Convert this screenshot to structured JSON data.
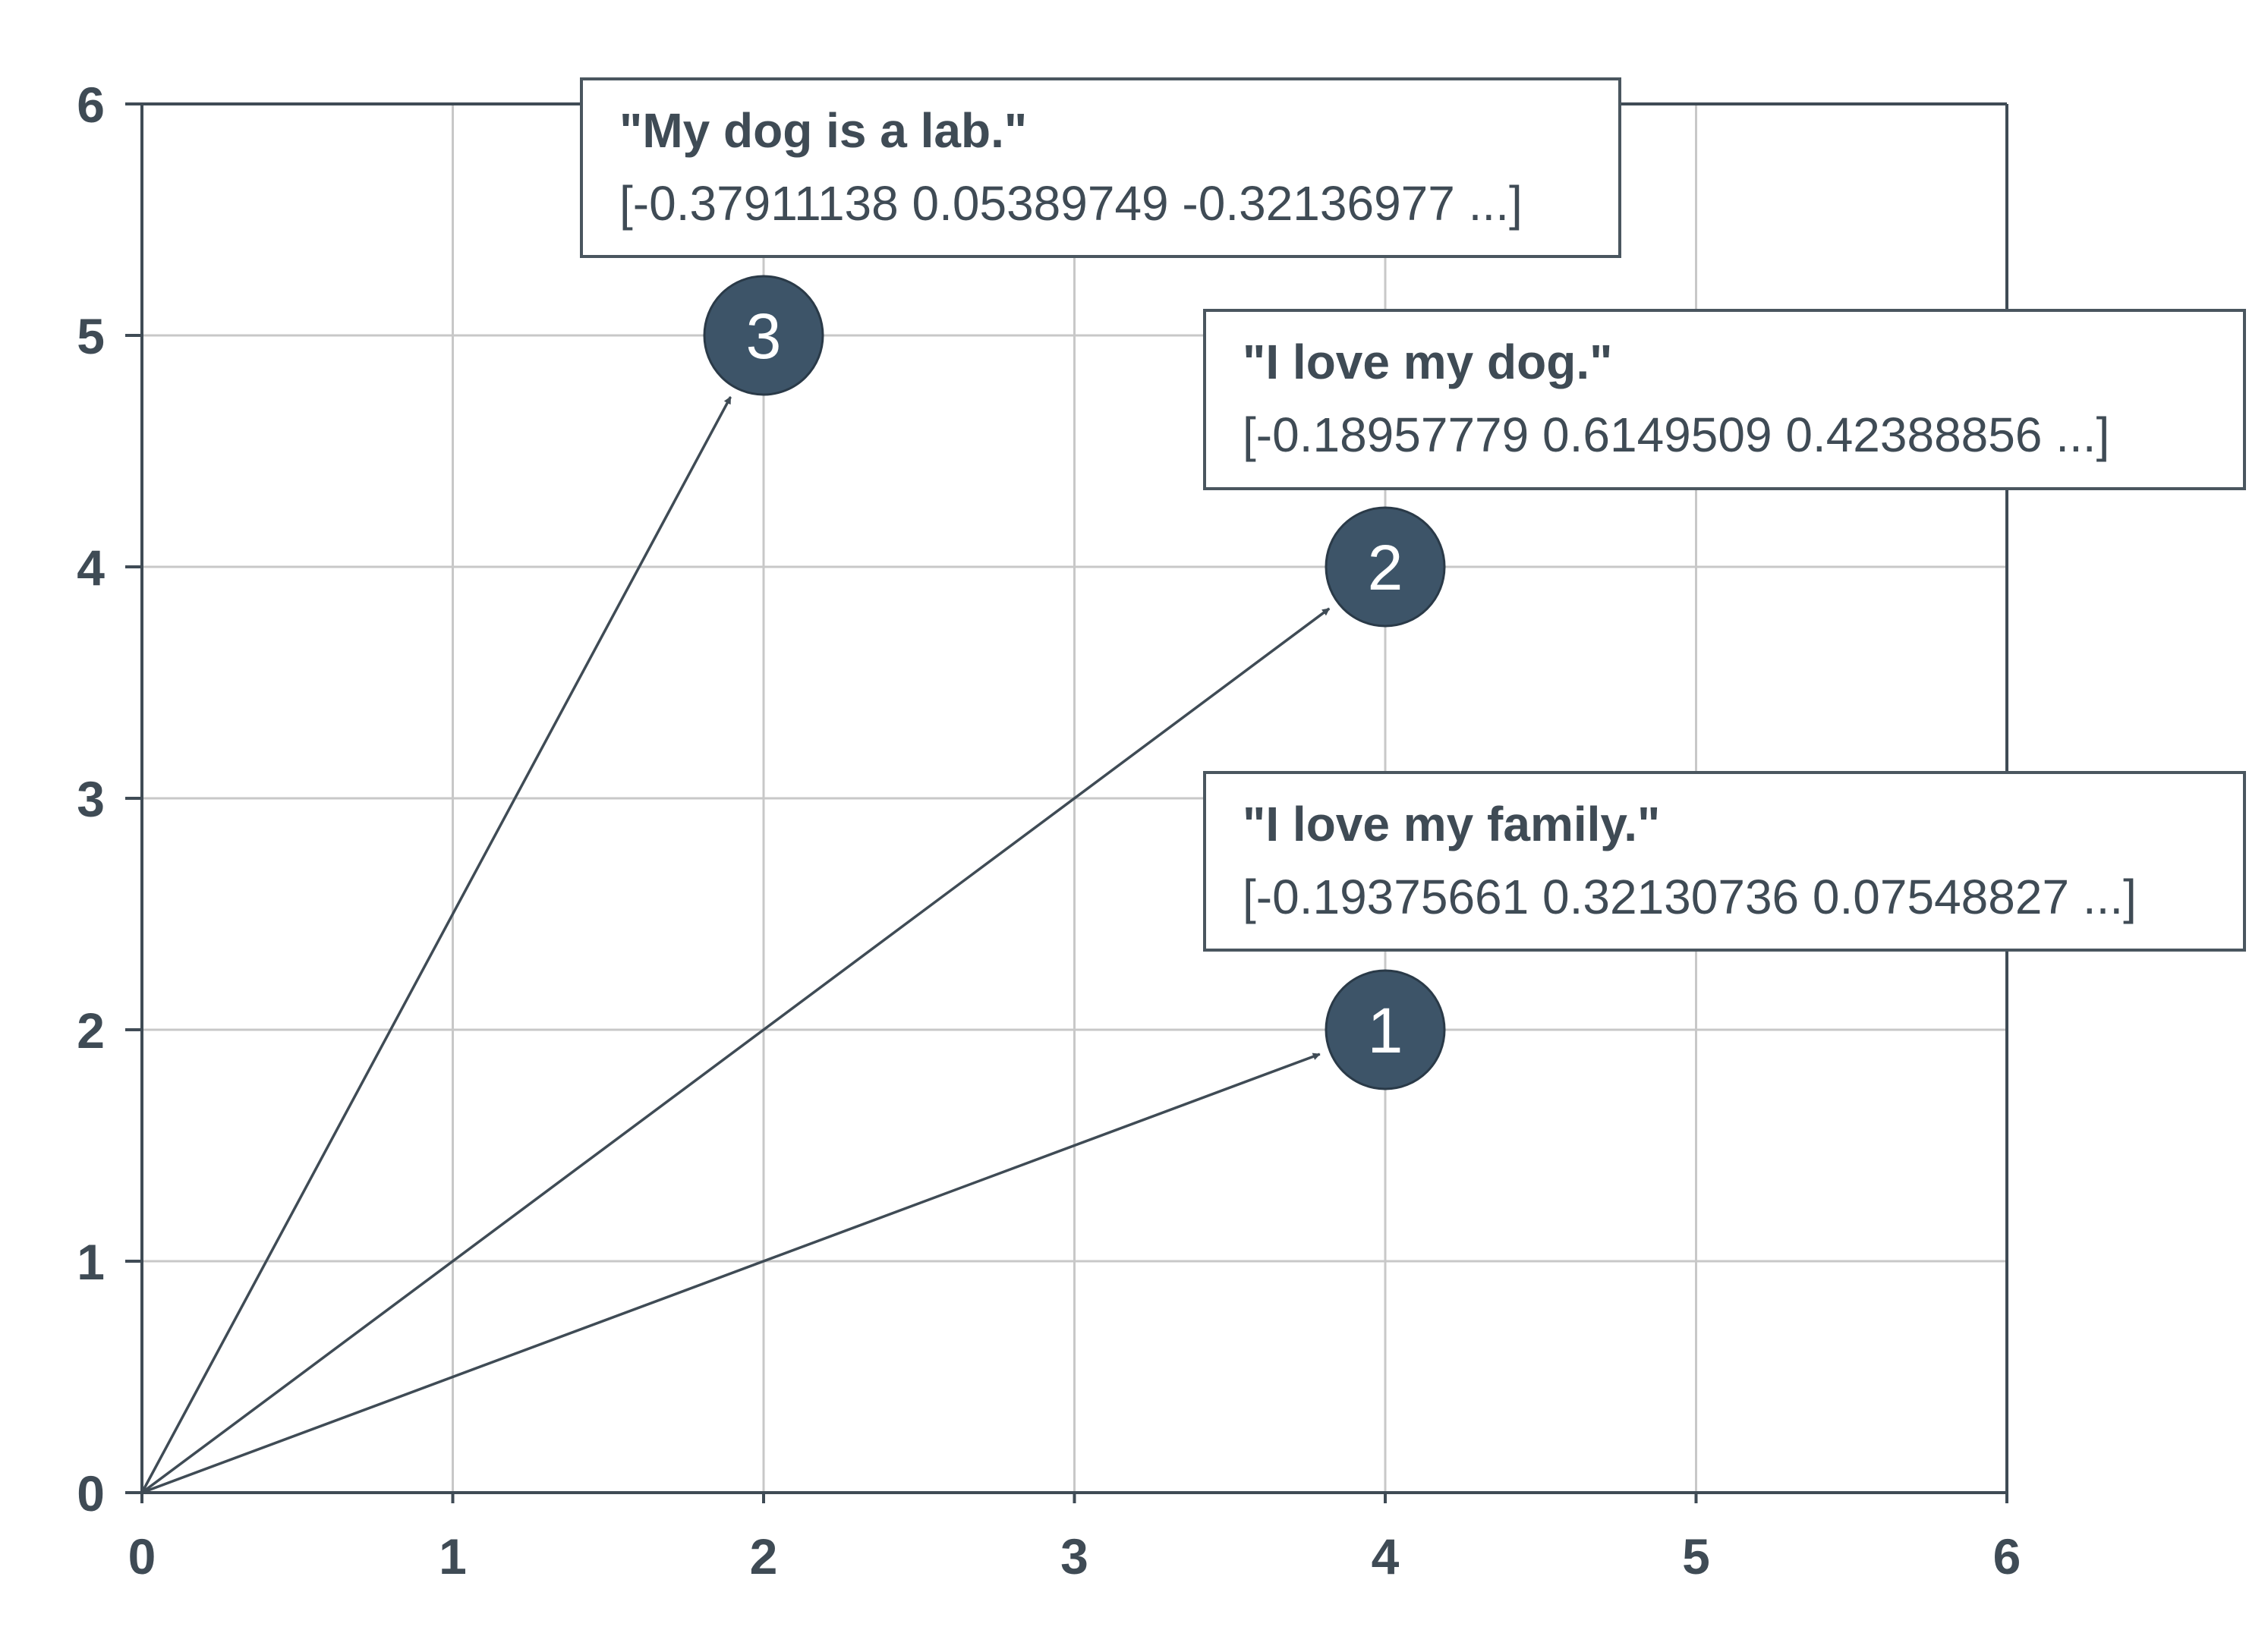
{
  "colors": {
    "axis": "#3f4b55",
    "grid": "#c8c8c8",
    "marker_fill": "#3d5468",
    "marker_stroke": "#2a3a48",
    "arrow": "#3f4b55",
    "box_border": "#4a565f",
    "text": "#3f4b55"
  },
  "chart_data": {
    "type": "line",
    "xlim": [
      0,
      6
    ],
    "ylim": [
      0,
      6
    ],
    "x_ticks": [
      "0",
      "1",
      "2",
      "3",
      "4",
      "5",
      "6"
    ],
    "y_ticks": [
      "0",
      "1",
      "2",
      "3",
      "4",
      "5",
      "6"
    ],
    "grid": true,
    "vectors": [
      {
        "label": "1",
        "x": 4,
        "y": 2,
        "title": "\"I love my family.\"",
        "vector": "[-0.19375661  0.32130736  0.07548827 ...]"
      },
      {
        "label": "2",
        "x": 4,
        "y": 4,
        "title": "\"I love my dog.\"",
        "vector": "[-0.18957779  0.6149509  0.42388856 ...]"
      },
      {
        "label": "3",
        "x": 2,
        "y": 5,
        "title": "\"My dog is a lab.\"",
        "vector": "[-0.37911138  0.05389749  -0.32136977 ...]"
      }
    ]
  }
}
